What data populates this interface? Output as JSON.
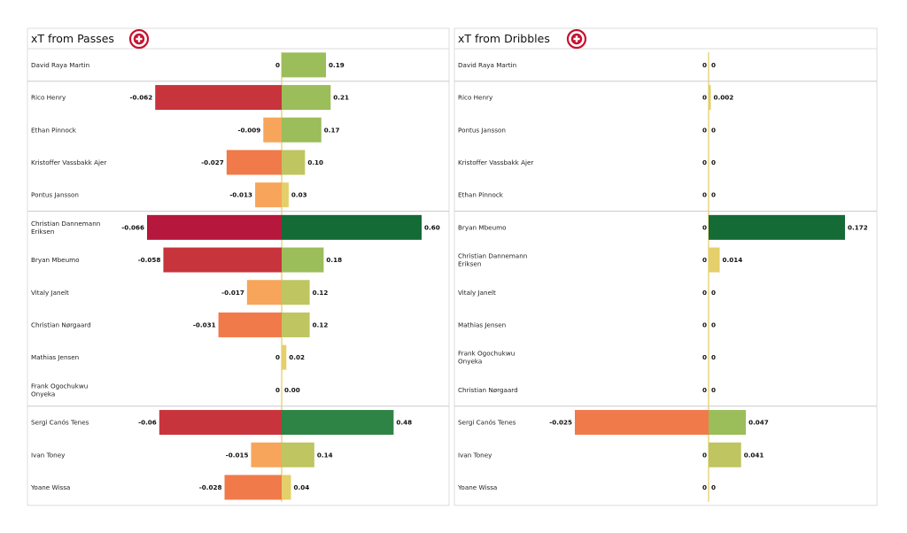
{
  "chart_data": [
    {
      "type": "bar",
      "title": "xT from Passes",
      "badge_icon": "brentford-crest-icon",
      "players": [
        {
          "name": [
            "David Raya Martin"
          ],
          "neg": 0,
          "neg_label": "0",
          "pos": 0.19,
          "pos_label": "0.19"
        },
        {
          "name": [
            "Rico Henry"
          ],
          "neg": -0.062,
          "neg_label": "-0.062",
          "pos": 0.21,
          "pos_label": "0.21"
        },
        {
          "name": [
            "Ethan Pinnock"
          ],
          "neg": -0.009,
          "neg_label": "-0.009",
          "pos": 0.17,
          "pos_label": "0.17"
        },
        {
          "name": [
            "Kristoffer Vassbakk Ajer"
          ],
          "neg": -0.027,
          "neg_label": "-0.027",
          "pos": 0.1,
          "pos_label": "0.10"
        },
        {
          "name": [
            "Pontus Jansson"
          ],
          "neg": -0.013,
          "neg_label": "-0.013",
          "pos": 0.03,
          "pos_label": "0.03"
        },
        {
          "name": [
            "Christian  Dannemann",
            "Eriksen"
          ],
          "neg": -0.066,
          "neg_label": "-0.066",
          "pos": 0.6,
          "pos_label": "0.60"
        },
        {
          "name": [
            "Bryan Mbeumo"
          ],
          "neg": -0.058,
          "neg_label": "-0.058",
          "pos": 0.18,
          "pos_label": "0.18"
        },
        {
          "name": [
            "Vitaly Janelt"
          ],
          "neg": -0.017,
          "neg_label": "-0.017",
          "pos": 0.12,
          "pos_label": "0.12"
        },
        {
          "name": [
            "Christian Nørgaard"
          ],
          "neg": -0.031,
          "neg_label": "-0.031",
          "pos": 0.12,
          "pos_label": "0.12"
        },
        {
          "name": [
            "Mathias Jensen"
          ],
          "neg": 0,
          "neg_label": "0",
          "pos": 0.02,
          "pos_label": "0.02"
        },
        {
          "name": [
            "Frank Ogochukwu",
            "Onyeka"
          ],
          "neg": 0,
          "neg_label": "0",
          "pos": 0.0,
          "pos_label": "0.00"
        },
        {
          "name": [
            "Sergi Canós Tenes"
          ],
          "neg": -0.06,
          "neg_label": "-0.06",
          "pos": 0.48,
          "pos_label": "0.48"
        },
        {
          "name": [
            "Ivan Toney"
          ],
          "neg": -0.015,
          "neg_label": "-0.015",
          "pos": 0.14,
          "pos_label": "0.14"
        },
        {
          "name": [
            "Yoane Wissa"
          ],
          "neg": -0.028,
          "neg_label": "-0.028",
          "pos": 0.04,
          "pos_label": "0.04"
        }
      ],
      "neg_range": [
        -0.066,
        0
      ],
      "pos_range": [
        0,
        0.6
      ],
      "group_breaks_after": [
        0,
        4,
        10
      ]
    },
    {
      "type": "bar",
      "title": "xT from Dribbles",
      "badge_icon": "brentford-crest-icon",
      "players": [
        {
          "name": [
            "David Raya Martin"
          ],
          "neg": 0,
          "neg_label": "0",
          "pos": 0,
          "pos_label": "0"
        },
        {
          "name": [
            "Rico Henry"
          ],
          "neg": 0,
          "neg_label": "0",
          "pos": 0.002,
          "pos_label": "0.002"
        },
        {
          "name": [
            "Pontus Jansson"
          ],
          "neg": 0,
          "neg_label": "0",
          "pos": 0,
          "pos_label": "0"
        },
        {
          "name": [
            "Kristoffer Vassbakk Ajer"
          ],
          "neg": 0,
          "neg_label": "0",
          "pos": 0,
          "pos_label": "0"
        },
        {
          "name": [
            "Ethan Pinnock"
          ],
          "neg": 0,
          "neg_label": "0",
          "pos": 0,
          "pos_label": "0"
        },
        {
          "name": [
            "Bryan Mbeumo"
          ],
          "neg": 0,
          "neg_label": "0",
          "pos": 0.172,
          "pos_label": "0.172"
        },
        {
          "name": [
            "Christian  Dannemann",
            "Eriksen"
          ],
          "neg": 0,
          "neg_label": "0",
          "pos": 0.014,
          "pos_label": "0.014"
        },
        {
          "name": [
            "Vitaly Janelt"
          ],
          "neg": 0,
          "neg_label": "0",
          "pos": 0,
          "pos_label": "0"
        },
        {
          "name": [
            "Mathias Jensen"
          ],
          "neg": 0,
          "neg_label": "0",
          "pos": 0,
          "pos_label": "0"
        },
        {
          "name": [
            "Frank Ogochukwu",
            "Onyeka"
          ],
          "neg": 0,
          "neg_label": "0",
          "pos": 0,
          "pos_label": "0"
        },
        {
          "name": [
            "Christian Nørgaard"
          ],
          "neg": 0,
          "neg_label": "0",
          "pos": 0,
          "pos_label": "0"
        },
        {
          "name": [
            "Sergi Canós Tenes"
          ],
          "neg": -0.025,
          "neg_label": "-0.025",
          "pos": 0.047,
          "pos_label": "0.047"
        },
        {
          "name": [
            "Ivan Toney"
          ],
          "neg": 0,
          "neg_label": "0",
          "pos": 0.041,
          "pos_label": "0.041"
        },
        {
          "name": [
            "Yoane Wissa"
          ],
          "neg": 0,
          "neg_label": "0",
          "pos": 0,
          "pos_label": "0"
        }
      ],
      "neg_range": [
        -0.025,
        0
      ],
      "pos_range": [
        0,
        0.172
      ],
      "group_breaks_after": [
        0,
        4,
        10
      ]
    }
  ],
  "colors": {
    "neg_strong": "#b5183c",
    "neg_mid": "#c8343c",
    "neg_orange": "#f07a4a",
    "neg_light": "#f7a55a",
    "pos_dark": "#146b36",
    "pos_mid": "#2e8444",
    "pos_green": "#9bbd5a",
    "pos_olive": "#bfc560",
    "pos_yellow": "#e4cf6a",
    "frame": "#dddddd",
    "divider": "#cccccc"
  }
}
